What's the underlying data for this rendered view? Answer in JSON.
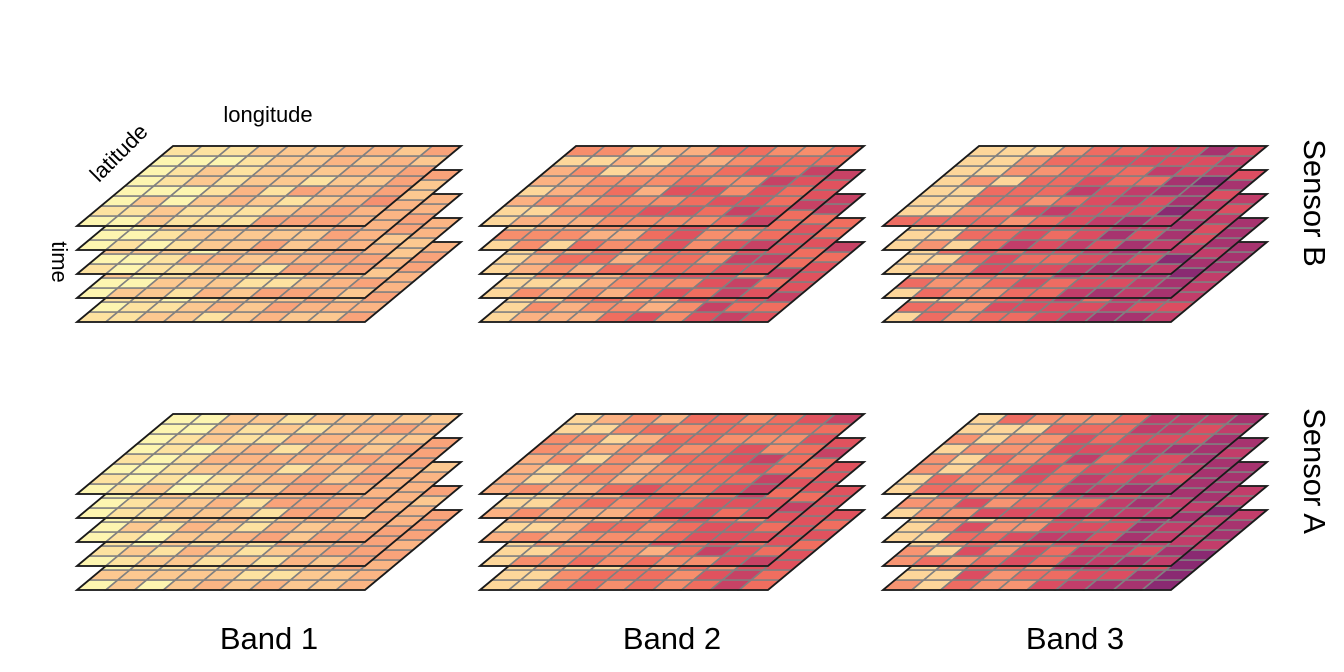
{
  "axis_labels": {
    "longitude": "longitude",
    "latitude": "latitude",
    "time": "time"
  },
  "bands": [
    {
      "label": "Band 1"
    },
    {
      "label": "Band 2"
    },
    {
      "label": "Band 3"
    }
  ],
  "sensors": [
    {
      "label": "Sensor B",
      "layers": 5
    },
    {
      "label": "Sensor A",
      "layers": 5
    }
  ],
  "grid": {
    "columns": 10,
    "rows": 8,
    "layers": 5
  },
  "colormap": "magma",
  "palettes": {
    "band_1": [
      "#fdf5b0",
      "#fde2a0",
      "#fcc890",
      "#fbb584",
      "#f9a37a",
      "#f69070",
      "#f37c66"
    ],
    "band_2": [
      "#fdd79a",
      "#fbb182",
      "#f78e6c",
      "#f06e5f",
      "#e0525e",
      "#c74265",
      "#b23a6d",
      "#9a3273"
    ],
    "band_3": [
      "#fdd69a",
      "#f79472",
      "#ee6c62",
      "#dc4d61",
      "#c23d6a",
      "#a7336f",
      "#8a2a72",
      "#6d2273",
      "#551c70"
    ]
  },
  "colors": {
    "outline": "#1a1a1a",
    "grid_line": "#808080",
    "background": "#ffffff"
  }
}
